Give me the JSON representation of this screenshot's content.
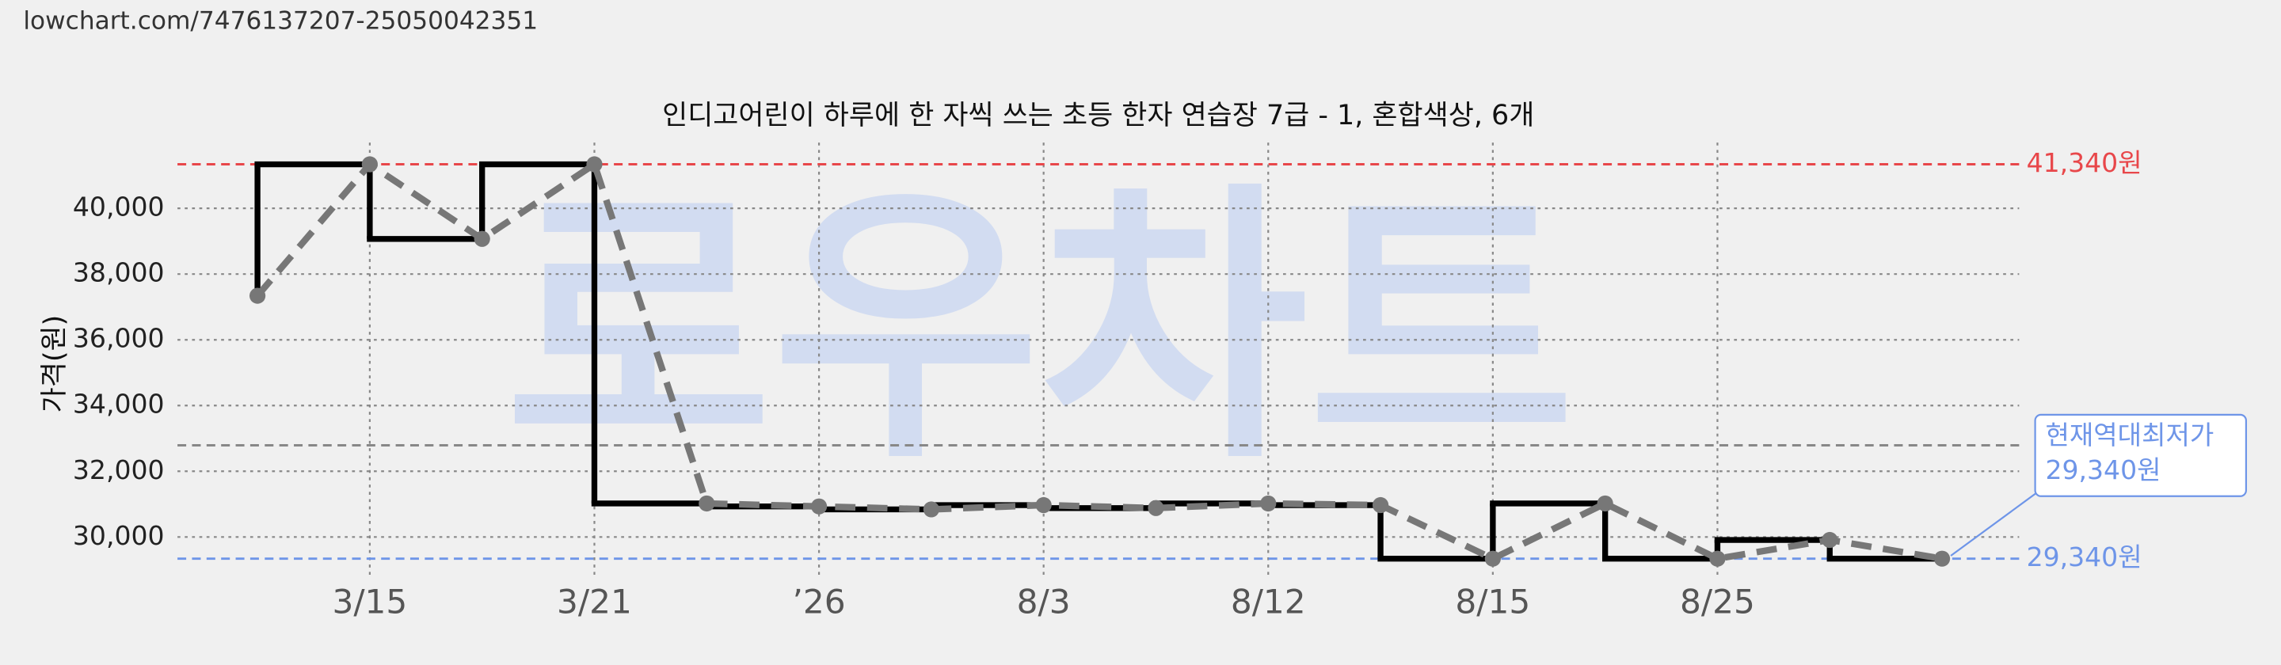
{
  "chart_data": {
    "type": "line",
    "source_url": "lowchart.com/7476137207-25050042351",
    "title": "인디고어린이 하루에 한 자씩 쓰는 초등 한자 연습장 7급 - 1, 혼합색상, 6개",
    "watermark": "로우차트",
    "y_label": "가격(원)",
    "categories": [
      null,
      "3/15",
      null,
      "3/21",
      null,
      "’26",
      null,
      "8/3",
      null,
      "8/12",
      null,
      "8/15",
      null,
      "8/25",
      null,
      null
    ],
    "values": [
      37340,
      41340,
      39070,
      41340,
      31020,
      30930,
      30840,
      30970,
      30880,
      31020,
      30970,
      29340,
      31020,
      29340,
      29910,
      29340
    ],
    "color": "#000000",
    "point_color": "#777777",
    "ylim": [
      28850,
      42000
    ],
    "yticks": [
      {
        "value": 30000,
        "label": "30,000"
      },
      {
        "value": 32000,
        "label": "32,000"
      },
      {
        "value": 34000,
        "label": "34,000"
      },
      {
        "value": 36000,
        "label": "36,000"
      },
      {
        "value": 38000,
        "label": "38,000"
      },
      {
        "value": 40000,
        "label": "40,000"
      }
    ],
    "grid": true,
    "reference_lines": [
      {
        "value": 41340,
        "label": "41,340원",
        "color": "#e8474a"
      },
      {
        "value": 29340,
        "label": "29,340원",
        "color": "#6e95e8"
      },
      {
        "value": 32790,
        "color": "#888888"
      }
    ],
    "annotation": {
      "title": "현재역대최저가",
      "label": "29,340원",
      "color": "#6e95e8"
    }
  }
}
